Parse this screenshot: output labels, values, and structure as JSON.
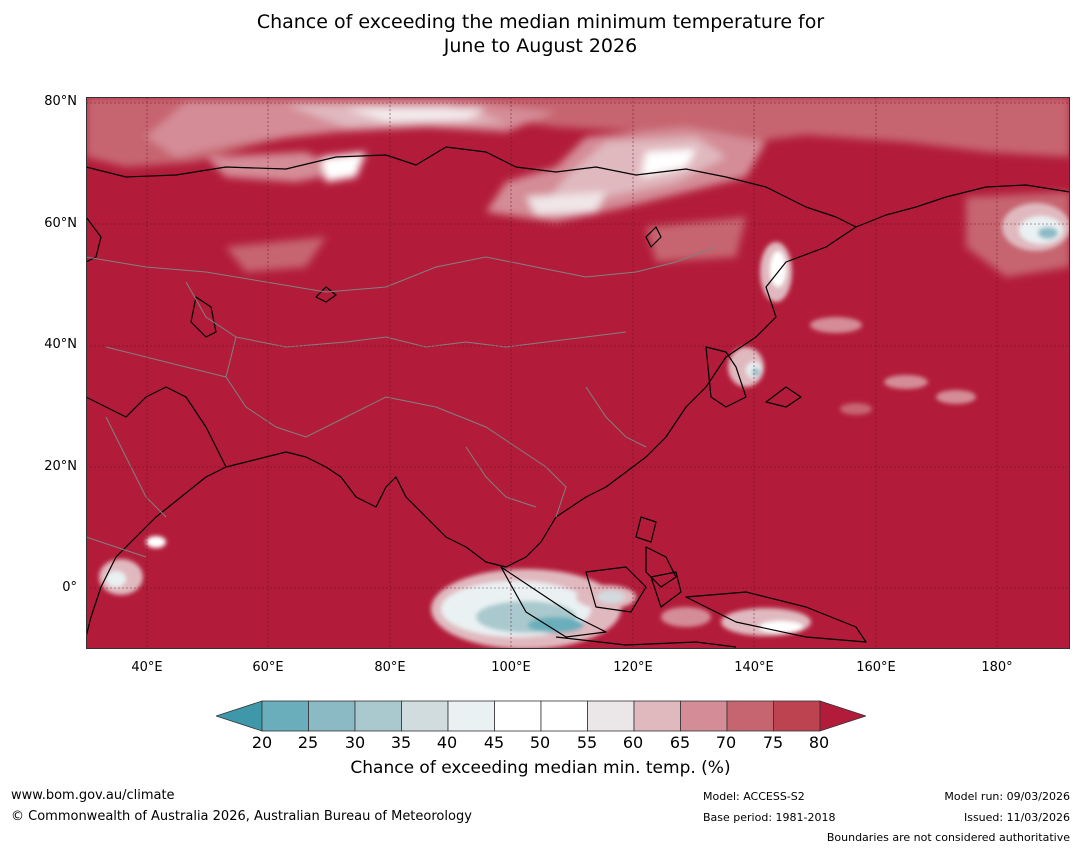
{
  "title": {
    "line1": "Chance of exceeding the median minimum temperature for",
    "line2": "June to August 2026"
  },
  "map": {
    "lat_labels": [
      "80°N",
      "60°N",
      "40°N",
      "20°N",
      "0°"
    ],
    "lon_labels": [
      "40°E",
      "60°E",
      "80°E",
      "100°E",
      "120°E",
      "140°E",
      "160°E",
      "180°"
    ],
    "lon_range": [
      30,
      192
    ],
    "lat_range": [
      -10,
      81
    ],
    "background_color": "#b21c3a"
  },
  "colorbar": {
    "ticks": [
      "20",
      "25",
      "30",
      "35",
      "40",
      "45",
      "50",
      "55",
      "60",
      "65",
      "70",
      "75",
      "80"
    ],
    "colors": [
      "#3f98a9",
      "#6aaebb",
      "#8bbac5",
      "#a9c9ce",
      "#d1dcdf",
      "#eaf1f3",
      "#ffffff",
      "#ffffff",
      "#ebe6e8",
      "#e0b9bf",
      "#d48c96",
      "#c6656f",
      "#bd4351",
      "#b21c3a"
    ],
    "label": "Chance of exceeding median min. temp. (%)"
  },
  "footer": {
    "website": "www.bom.gov.au/climate",
    "copyright": "© Commonwealth of Australia 2026, Australian Bureau of Meteorology",
    "model": "Model: ACCESS-S2",
    "base_period": "Base period: 1981-2018",
    "model_run": "Model run: 09/03/2026",
    "issued": "Issued: 11/03/2026",
    "disclaimer": "Boundaries are not considered authoritative"
  }
}
